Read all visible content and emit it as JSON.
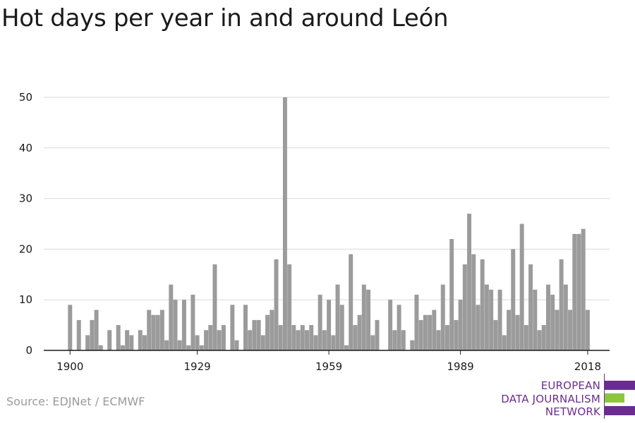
{
  "title": "Hot days per year in and around León",
  "source": "Source: EDJNet / ECMWF",
  "logo": {
    "lines": [
      "EUROPEAN",
      "DATA JOURNALISM",
      "NETWORK"
    ],
    "colors": {
      "purple": "#6b2c91",
      "green": "#8cc63f"
    }
  },
  "colors": {
    "bar": "#9b9b9b",
    "grid": "#d9d9d9",
    "axis": "#1a1a1a"
  },
  "chart_data": {
    "type": "bar",
    "title": "Hot days per year in and around León",
    "xlabel": "",
    "ylabel": "",
    "ylim": [
      0,
      50
    ],
    "yticks": [
      0,
      10,
      20,
      30,
      40,
      50
    ],
    "xticks": [
      1900,
      1929,
      1959,
      1989,
      2018
    ],
    "xlim": [
      1894,
      2023
    ],
    "grid": true,
    "x": [
      1900,
      1901,
      1902,
      1903,
      1904,
      1905,
      1906,
      1907,
      1908,
      1909,
      1910,
      1911,
      1912,
      1913,
      1914,
      1915,
      1916,
      1917,
      1918,
      1919,
      1920,
      1921,
      1922,
      1923,
      1924,
      1925,
      1926,
      1927,
      1928,
      1929,
      1930,
      1931,
      1932,
      1933,
      1934,
      1935,
      1936,
      1937,
      1938,
      1939,
      1940,
      1941,
      1942,
      1943,
      1944,
      1945,
      1946,
      1947,
      1948,
      1949,
      1950,
      1951,
      1952,
      1953,
      1954,
      1955,
      1956,
      1957,
      1958,
      1959,
      1960,
      1961,
      1962,
      1963,
      1964,
      1965,
      1966,
      1967,
      1968,
      1969,
      1970,
      1971,
      1972,
      1973,
      1974,
      1975,
      1976,
      1977,
      1978,
      1979,
      1980,
      1981,
      1982,
      1983,
      1984,
      1985,
      1986,
      1987,
      1988,
      1989,
      1990,
      1991,
      1992,
      1993,
      1994,
      1995,
      1996,
      1997,
      1998,
      1999,
      2000,
      2001,
      2002,
      2003,
      2004,
      2005,
      2006,
      2007,
      2008,
      2009,
      2010,
      2011,
      2012,
      2013,
      2014,
      2015,
      2016,
      2017,
      2018
    ],
    "values": [
      9,
      0,
      6,
      0,
      3,
      6,
      8,
      1,
      0,
      4,
      0,
      5,
      1,
      4,
      3,
      0,
      4,
      3,
      8,
      7,
      7,
      8,
      2,
      13,
      10,
      2,
      10,
      1,
      11,
      3,
      1,
      4,
      5,
      17,
      4,
      5,
      0,
      9,
      2,
      0,
      9,
      4,
      6,
      6,
      3,
      7,
      8,
      18,
      5,
      50,
      17,
      5,
      4,
      5,
      4,
      5,
      3,
      11,
      4,
      10,
      3,
      13,
      9,
      1,
      19,
      5,
      7,
      13,
      12,
      3,
      6,
      0,
      0,
      10,
      4,
      9,
      4,
      0,
      2,
      11,
      6,
      7,
      7,
      8,
      4,
      13,
      5,
      22,
      6,
      10,
      17,
      27,
      19,
      9,
      18,
      13,
      12,
      6,
      12,
      3,
      8,
      20,
      7,
      25,
      5,
      17,
      12,
      4,
      5,
      13,
      11,
      8,
      18,
      13,
      8,
      23,
      23,
      24,
      8
    ]
  }
}
